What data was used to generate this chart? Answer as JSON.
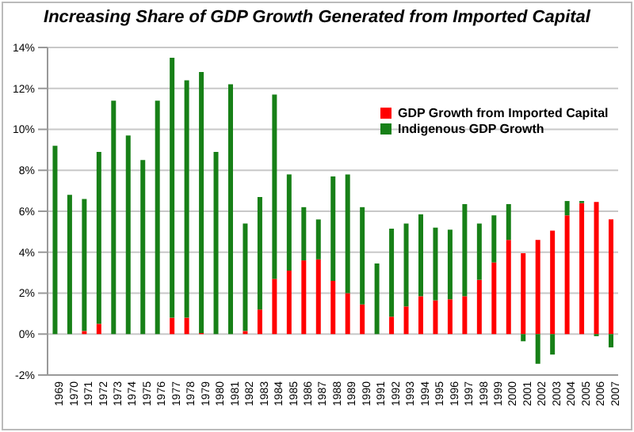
{
  "chart_data": {
    "type": "bar",
    "title": "Increasing Share of GDP Growth Generated from Imported Capital",
    "categories": [
      "1969",
      "1970",
      "1971",
      "1972",
      "1973",
      "1974",
      "1975",
      "1976",
      "1977",
      "1978",
      "1979",
      "1980",
      "1981",
      "1982",
      "1983",
      "1984",
      "1985",
      "1986",
      "1987",
      "1988",
      "1989",
      "1990",
      "1991",
      "1992",
      "1993",
      "1994",
      "1995",
      "1996",
      "1997",
      "1998",
      "1999",
      "2000",
      "2001",
      "2002",
      "2003",
      "2004",
      "2005",
      "2006",
      "2007"
    ],
    "series": [
      {
        "name": "GDP Growth from Imported Capital",
        "color": "#ff0000",
        "values": [
          null,
          null,
          0.15,
          0.5,
          null,
          null,
          null,
          null,
          0.8,
          0.8,
          0.05,
          null,
          null,
          0.15,
          1.2,
          2.7,
          3.1,
          3.6,
          3.65,
          2.6,
          2.0,
          1.45,
          null,
          0.85,
          1.35,
          1.85,
          1.65,
          1.7,
          1.85,
          2.65,
          3.5,
          4.6,
          3.95,
          4.6,
          5.05,
          5.8,
          6.4,
          6.45,
          5.6
        ]
      },
      {
        "name": "Indigenous GDP Growth",
        "color": "#178017",
        "values": [
          9.2,
          6.8,
          6.45,
          8.4,
          11.4,
          9.7,
          8.5,
          11.4,
          12.7,
          11.6,
          12.75,
          8.9,
          12.2,
          5.25,
          5.5,
          9.0,
          4.7,
          2.6,
          1.95,
          5.1,
          5.8,
          4.75,
          3.45,
          4.3,
          4.05,
          4.0,
          3.55,
          3.4,
          4.5,
          2.75,
          2.3,
          1.75,
          -0.35,
          -1.45,
          -1.0,
          0.7,
          0.1,
          -0.1,
          -0.65
        ]
      }
    ],
    "stacked": true,
    "ylim": [
      -2,
      14
    ],
    "yticks": [
      {
        "value": -2,
        "label": "-2%"
      },
      {
        "value": 0,
        "label": "0%"
      },
      {
        "value": 2,
        "label": "2%"
      },
      {
        "value": 4,
        "label": "4%"
      },
      {
        "value": 6,
        "label": "6%"
      },
      {
        "value": 8,
        "label": "8%"
      },
      {
        "value": 10,
        "label": "10%"
      },
      {
        "value": 12,
        "label": "12%"
      },
      {
        "value": 14,
        "label": "14%"
      }
    ],
    "grid": "y",
    "legend": "top right"
  }
}
